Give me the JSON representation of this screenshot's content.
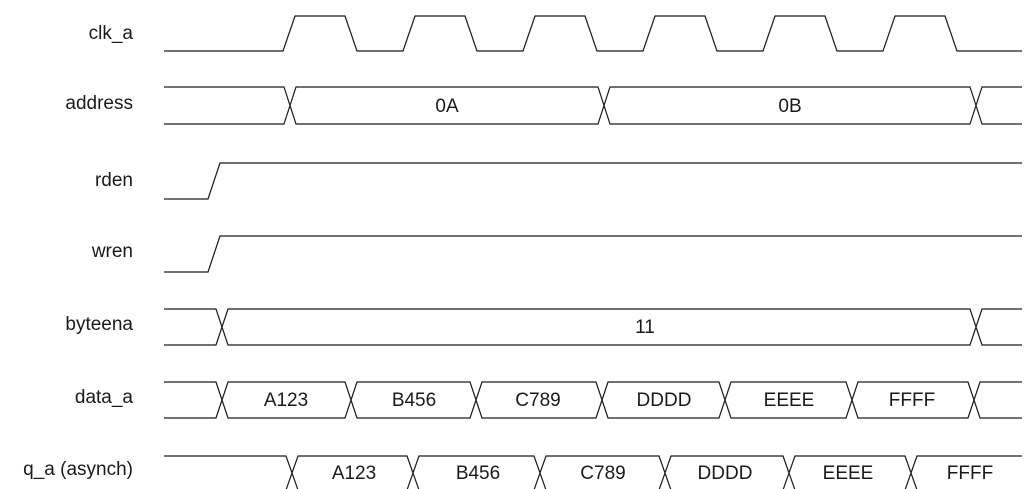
{
  "signals": [
    {
      "id": "clk_a",
      "label": "clk_a",
      "kind": "clock"
    },
    {
      "id": "address",
      "label": "address",
      "kind": "bus",
      "segments": [
        "",
        "0A",
        "0B",
        ""
      ]
    },
    {
      "id": "rden",
      "label": "rden",
      "kind": "step"
    },
    {
      "id": "wren",
      "label": "wren",
      "kind": "step"
    },
    {
      "id": "byteena",
      "label": "byteena",
      "kind": "bus",
      "segments": [
        "",
        "11",
        ""
      ]
    },
    {
      "id": "data_a",
      "label": "data_a",
      "kind": "bus",
      "segments": [
        "",
        "A123",
        "B456",
        "C789",
        "DDDD",
        "EEEE",
        "FFFF",
        ""
      ]
    },
    {
      "id": "q_a",
      "label": "q_a (asynch)",
      "kind": "bus-lowstart",
      "segments": [
        "",
        "A123",
        "B456",
        "C789",
        "DDDD",
        "EEEE",
        "FFFF"
      ]
    }
  ]
}
